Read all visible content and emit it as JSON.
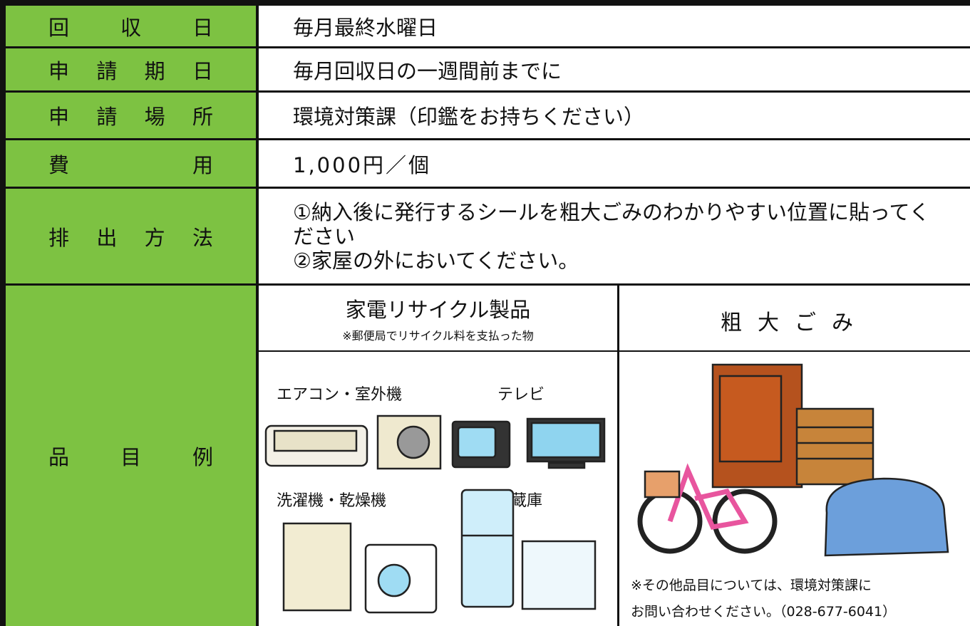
{
  "table": {
    "rows": [
      {
        "label": "回収日",
        "value": "毎月最終水曜日"
      },
      {
        "label": "申請期日",
        "value": "毎月回収日の一週間前までに"
      },
      {
        "label": "申請場所",
        "value": "環境対策課（印鑑をお持ちください）"
      },
      {
        "label": "費用",
        "value": "1,000円／個"
      },
      {
        "label": "排出方法",
        "lines": [
          "①納入後に発行するシールを粗大ごみのわかりやすい位置に貼ってください",
          "②家屋の外においてください。"
        ]
      },
      {
        "label": "品目例"
      }
    ]
  },
  "examples": {
    "appliances": {
      "title": "家電リサイクル製品",
      "note": "※郵便局でリサイクル料を支払った物",
      "items": [
        "エアコン・室外機",
        "テレビ",
        "洗濯機・乾燥機",
        "冷蔵庫"
      ]
    },
    "bulky": {
      "title": "粗大ごみ",
      "note_lines": [
        "※その他品目については、環境対策課に",
        "お問い合わせください。（028-677-6041）"
      ]
    }
  }
}
